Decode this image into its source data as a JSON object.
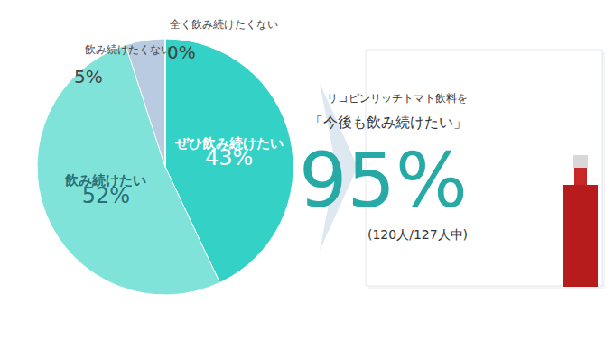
{
  "chart_data": {
    "type": "pie",
    "categories": [
      "ぜひ飲み続けたい",
      "飲み続けたい",
      "飲み続けたくない",
      "全く飲み続けたくない"
    ],
    "values": [
      43,
      52,
      5,
      0
    ],
    "value_labels": [
      "43%",
      "52%",
      "5%",
      "0%"
    ],
    "colors": [
      "#33d1c6",
      "#80e3d9",
      "#b8cbe0",
      "#8fa8c8"
    ],
    "data_labels": true,
    "callout": {
      "lines": [
        "リコピンリッチトマト飲料を",
        "「今後も飲み続けたい」"
      ],
      "value_label": "95%",
      "note": "(120人/127人中)"
    }
  }
}
